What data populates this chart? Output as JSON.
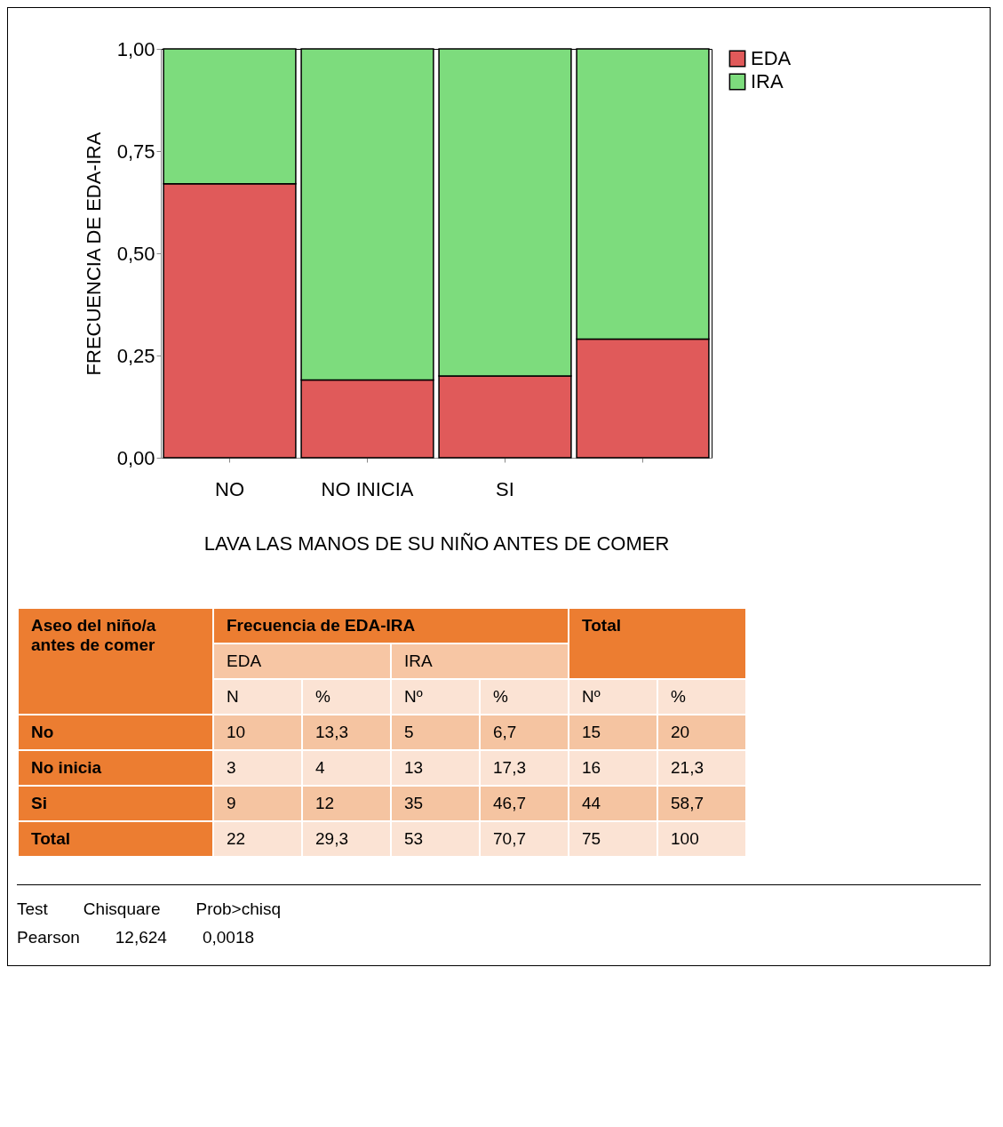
{
  "chart_data": {
    "type": "bar",
    "stacked": true,
    "xlabel": "LAVA LAS MANOS DE SU NIÑO ANTES DE COMER",
    "ylabel": "FRECUENCIA DE EDA-IRA",
    "categories": [
      "NO",
      "NO INICIA",
      "SI",
      null
    ],
    "series": [
      {
        "name": "EDA",
        "color": "#e05a5a",
        "values": [
          0.67,
          0.19,
          0.2,
          0.29
        ]
      },
      {
        "name": "IRA",
        "color": "#7ddc7d",
        "values": [
          0.33,
          0.81,
          0.8,
          0.71
        ]
      }
    ],
    "ylim": [
      0,
      1
    ],
    "yticks": [
      {
        "value": 0,
        "label": "0,00"
      },
      {
        "value": 0.25,
        "label": "0,25"
      },
      {
        "value": 0.5,
        "label": "0,50"
      },
      {
        "value": 0.75,
        "label": "0,75"
      },
      {
        "value": 1,
        "label": "1,00"
      }
    ],
    "legend": "right",
    "grid": false,
    "annotations": [
      "Aseo del niño/a antes de comer",
      "Frecuencia de EDA-IRA",
      "Total",
      "EDA",
      "IRA",
      "N",
      "%",
      "Nº",
      "%",
      "Nº",
      "%",
      "No",
      "10",
      "13,3",
      "5",
      "6,7",
      "15",
      "20",
      "No inicia",
      "3",
      "4",
      "13",
      "17,3",
      "16",
      "21,3",
      "Si",
      "9",
      "12",
      "35",
      "46,7",
      "44",
      "58,7",
      "Total",
      "22",
      "29,3",
      "53",
      "70,7",
      "75",
      "100",
      "Test",
      "Chisquare",
      "Prob>chisq",
      "Pearson",
      "12,624",
      "0,0018"
    ]
  }
}
